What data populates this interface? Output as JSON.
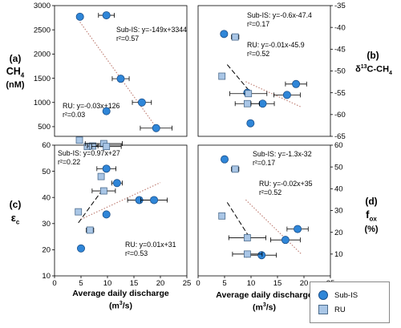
{
  "panel_labels": {
    "a": "(a)",
    "a_unit_1": "CH",
    "a_sub": "4",
    "a_unit_2": "(nM)",
    "b": "(b)",
    "b_unit_pre": "δ",
    "b_unit_sup": "13",
    "b_unit_mid": "C-CH",
    "b_unit_sub": "4",
    "c": "(c)",
    "c_unit": "ε",
    "c_sub": "c",
    "d": "(d)",
    "d_unit_1": "f",
    "d_sub": "ox",
    "d_unit_2": "(%)"
  },
  "x_axis": {
    "label_left": "Average daily discharge",
    "label_right": "Average daily discharge",
    "unit_pre": "(m",
    "unit_sup": "3",
    "unit_post": "/s)"
  },
  "legend": {
    "sub_is": "Sub-IS",
    "ru": "RU"
  },
  "colors": {
    "sub_is_fill": "#2f86d8",
    "sub_is_edge": "#1a4f8a",
    "ru_fill": "#a9c6e6",
    "ru_edge": "#4b6b8c"
  },
  "chart_data": [
    {
      "id": "a",
      "type": "scatter",
      "xlim": [
        0,
        25
      ],
      "ylim": [
        300,
        3000
      ],
      "yticks": [
        500,
        1000,
        1500,
        2000,
        2500,
        3000
      ],
      "xticks": [],
      "y_axis_side": "left",
      "annotations": [
        "Sub-IS: y=-149x+3344",
        "r²=0.57",
        "RU: y=-0.03x+126",
        "r²=0.03"
      ],
      "series": [
        {
          "name": "Sub-IS",
          "marker": "circle",
          "fit": "dotted",
          "points": [
            {
              "x": 4.8,
              "y": 2770,
              "xerr": 0
            },
            {
              "x": 9.8,
              "y": 2800,
              "xerr": 1.5
            },
            {
              "x": 12.5,
              "y": 1490,
              "xerr": 1.6
            },
            {
              "x": 9.8,
              "y": 820,
              "xerr": 0
            },
            {
              "x": 16.5,
              "y": 1000,
              "xerr": 1.8
            },
            {
              "x": 19.2,
              "y": 470,
              "xerr": 3.0
            }
          ],
          "fit_range": [
            4.8,
            19.2
          ]
        },
        {
          "name": "RU",
          "marker": "square",
          "fit": "none",
          "points": [
            {
              "x": 4.7,
              "y": 220,
              "xerr": 0
            },
            {
              "x": 6.2,
              "y": 90,
              "xerr": 0
            },
            {
              "x": 7.2,
              "y": 100,
              "xerr": 1.0
            },
            {
              "x": 9.3,
              "y": 150,
              "xerr": 3.5
            },
            {
              "x": 9.8,
              "y": 90,
              "xerr": 2.8
            }
          ]
        }
      ]
    },
    {
      "id": "b",
      "type": "scatter",
      "xlim": [
        0,
        25
      ],
      "ylim": [
        -65,
        -35
      ],
      "yticks": [
        -35,
        -40,
        -45,
        -50,
        -55,
        -60,
        -65
      ],
      "xticks": [],
      "y_axis_side": "right",
      "annotations": [
        "Sub-IS: y=-0.6x-47.4",
        "r²=0.17",
        "RU: y=-0.01x-45.9",
        "r²=0.52"
      ],
      "series": [
        {
          "name": "Sub-IS",
          "marker": "circle",
          "fit": "dotted",
          "points": [
            {
              "x": 4.9,
              "y": -41.5,
              "xerr": 0
            },
            {
              "x": 9.3,
              "y": -55.0,
              "xerr": 0
            },
            {
              "x": 12.2,
              "y": -57.5,
              "xerr": 2.2
            },
            {
              "x": 18.5,
              "y": -53.0,
              "xerr": 2.0
            },
            {
              "x": 16.8,
              "y": -55.5,
              "xerr": 2.5
            },
            {
              "x": 9.9,
              "y": -62.0,
              "xerr": 0
            }
          ],
          "fit_range": [
            9.0,
            19.5
          ]
        },
        {
          "name": "RU",
          "marker": "square",
          "fit": "dashed",
          "points": [
            {
              "x": 7.0,
              "y": -42.2,
              "xerr": 0.7
            },
            {
              "x": 4.5,
              "y": -51.2,
              "xerr": 0
            },
            {
              "x": 9.5,
              "y": -55.2,
              "xerr": 3.5
            },
            {
              "x": 9.3,
              "y": -57.5,
              "xerr": 2.3
            }
          ],
          "fit_range": [
            5.5,
            9.5
          ]
        }
      ]
    },
    {
      "id": "c",
      "type": "scatter",
      "xlim": [
        0,
        25
      ],
      "ylim": [
        10,
        60
      ],
      "yticks": [
        10,
        20,
        30,
        40,
        50,
        60
      ],
      "xticks": [
        0,
        5,
        10,
        15,
        20,
        25
      ],
      "y_axis_side": "left",
      "annotations": [
        "Sub-IS: y=0.97x+27",
        "r²=0.22",
        "RU: y=0.01x+31",
        "r²=0.53"
      ],
      "series": [
        {
          "name": "Sub-IS",
          "marker": "circle",
          "fit": "dotted",
          "points": [
            {
              "x": 9.8,
              "y": 51,
              "xerr": 1.8
            },
            {
              "x": 11.8,
              "y": 45.5,
              "xerr": 1.0
            },
            {
              "x": 9.8,
              "y": 33.5,
              "xerr": 0
            },
            {
              "x": 16.0,
              "y": 39,
              "xerr": 2.2
            },
            {
              "x": 18.8,
              "y": 39,
              "xerr": 2.5
            },
            {
              "x": 5.0,
              "y": 20.5,
              "xerr": 0
            }
          ],
          "fit_range": [
            5.0,
            20.0
          ]
        },
        {
          "name": "RU",
          "marker": "square",
          "fit": "dashed",
          "points": [
            {
              "x": 8.8,
              "y": 48,
              "xerr": 0
            },
            {
              "x": 9.3,
              "y": 42.5,
              "xerr": 2.2
            },
            {
              "x": 4.5,
              "y": 34.5,
              "xerr": 0
            },
            {
              "x": 6.7,
              "y": 27.5,
              "xerr": 0.7
            }
          ],
          "fit_range": [
            4.5,
            9.0
          ]
        }
      ]
    },
    {
      "id": "d",
      "type": "scatter",
      "xlim": [
        0,
        25
      ],
      "ylim": [
        0,
        60
      ],
      "yticks": [
        10,
        20,
        30,
        40,
        50,
        60
      ],
      "xticks": [
        0,
        5,
        10,
        15,
        20,
        25
      ],
      "y_axis_side": "right",
      "annotations": [
        "Sub-IS: y=-1.3x-32",
        "r²=0.17",
        "RU: y=-0.02x+35",
        "r²=0.52"
      ],
      "series": [
        {
          "name": "Sub-IS",
          "marker": "circle",
          "fit": "dotted",
          "points": [
            {
              "x": 5.0,
              "y": 53.5,
              "xerr": 0
            },
            {
              "x": 18.8,
              "y": 21.5,
              "xerr": 2.0
            },
            {
              "x": 16.5,
              "y": 16.5,
              "xerr": 2.8
            },
            {
              "x": 12.0,
              "y": 9.5,
              "xerr": 2.8
            }
          ],
          "fit_range": [
            9.0,
            19.5
          ]
        },
        {
          "name": "RU",
          "marker": "square",
          "fit": "dashed",
          "points": [
            {
              "x": 7.0,
              "y": 49.0,
              "xerr": 0.7
            },
            {
              "x": 4.5,
              "y": 27.5,
              "xerr": 0
            },
            {
              "x": 9.3,
              "y": 17.5,
              "xerr": 3.5
            },
            {
              "x": 9.3,
              "y": 10.0,
              "xerr": 2.8
            }
          ],
          "fit_range": [
            5.5,
            9.5
          ]
        }
      ]
    }
  ]
}
